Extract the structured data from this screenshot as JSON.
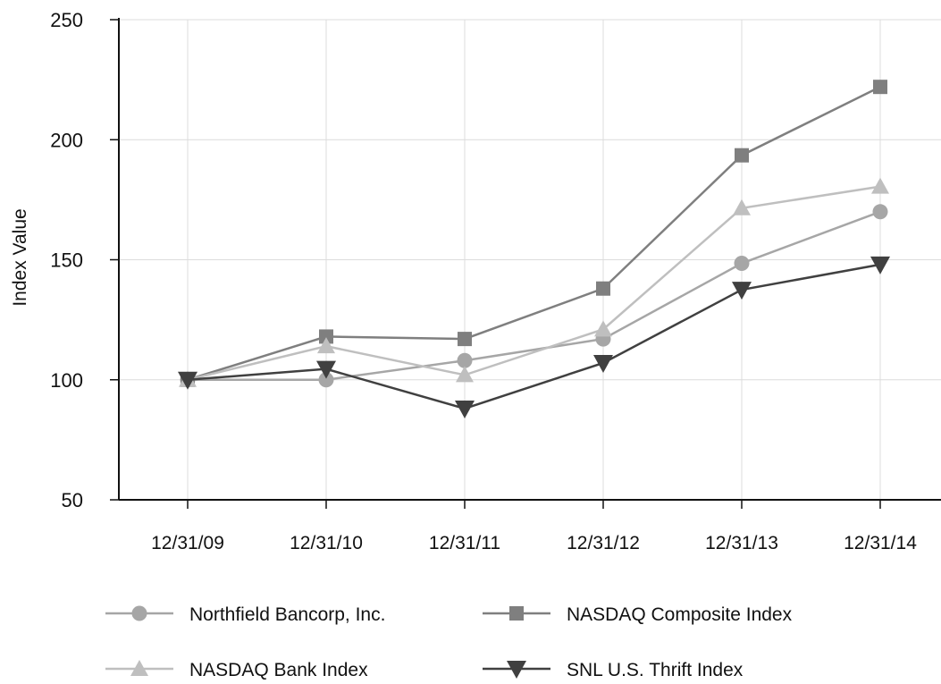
{
  "chart_data": {
    "type": "line",
    "title": "",
    "xlabel": "",
    "ylabel": "Index Value",
    "ylim": [
      50,
      250
    ],
    "yticks": [
      50,
      100,
      150,
      200,
      250
    ],
    "grid": true,
    "legend_position": "bottom",
    "categories": [
      "12/31/09",
      "12/31/10",
      "12/31/11",
      "12/31/12",
      "12/31/13",
      "12/31/14"
    ],
    "series": [
      {
        "name": "Northfield Bancorp, Inc.",
        "marker": "circle",
        "color": "#a6a6a6",
        "values": [
          100,
          100,
          108,
          117,
          148.5,
          170
        ]
      },
      {
        "name": "NASDAQ Composite Index",
        "marker": "square",
        "color": "#7f7f7f",
        "values": [
          100,
          118,
          117,
          138,
          193.5,
          222
        ]
      },
      {
        "name": "NASDAQ Bank Index",
        "marker": "triangle-up",
        "color": "#bfbfbf",
        "values": [
          100,
          114,
          102,
          121,
          171.5,
          180.5
        ]
      },
      {
        "name": "SNL U.S. Thrift Index",
        "marker": "triangle-down",
        "color": "#404040",
        "values": [
          100,
          104.5,
          88,
          107,
          137.5,
          148
        ]
      }
    ]
  }
}
